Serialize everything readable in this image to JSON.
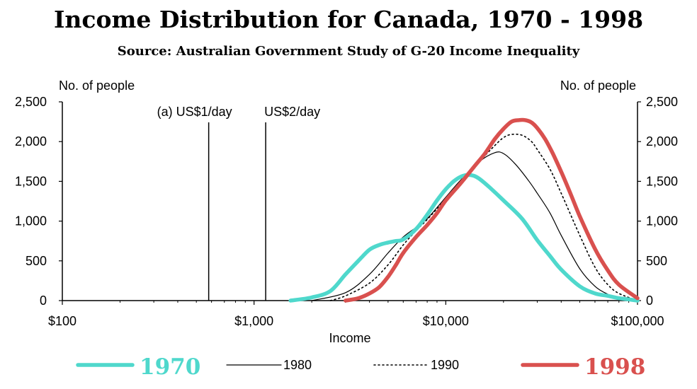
{
  "title": "Income Distribution for Canada, 1970 - 1998",
  "subtitle": "Source: Australian Government Study of G-20 Income Inequality",
  "colors": {
    "s1970": "#4fd8cc",
    "s1998": "#d9504e",
    "line": "#000000"
  },
  "chart_data": {
    "type": "line",
    "xlabel": "Income",
    "ylabel_left": "No. of people",
    "ylabel_right": "No. of people",
    "x_scale": "log",
    "xlim": [
      100,
      100000
    ],
    "ylim": [
      0,
      2500
    ],
    "x_ticks": [
      {
        "value": 100,
        "label": "$100"
      },
      {
        "value": 1000,
        "label": "$1,000"
      },
      {
        "value": 10000,
        "label": "$10,000"
      },
      {
        "value": 100000,
        "label": "$100,000"
      }
    ],
    "y_ticks": [
      {
        "value": 0,
        "label": "0"
      },
      {
        "value": 500,
        "label": "500"
      },
      {
        "value": 1000,
        "label": "1,000"
      },
      {
        "value": 1500,
        "label": "1,500"
      },
      {
        "value": 2000,
        "label": "2,000"
      },
      {
        "value": 2500,
        "label": "2,500"
      }
    ],
    "reference_lines": [
      {
        "x": 580,
        "label": "(a) US$1/day"
      },
      {
        "x": 1150,
        "label": "US$2/day"
      }
    ],
    "series": [
      {
        "name": "1970",
        "style": "thick-teal",
        "x": [
          1550,
          2000,
          2500,
          3000,
          3500,
          4000,
          4500,
          5000,
          5500,
          6000,
          7000,
          8000,
          9000,
          10000,
          11000,
          12000,
          13000,
          14000,
          15000,
          17000,
          20000,
          25000,
          30000,
          35000,
          40000,
          50000,
          60000,
          70000,
          80000,
          90000,
          100000
        ],
        "y": [
          0,
          40,
          120,
          330,
          500,
          640,
          700,
          730,
          750,
          770,
          900,
          1080,
          1260,
          1400,
          1500,
          1560,
          1580,
          1570,
          1530,
          1420,
          1260,
          1030,
          760,
          560,
          390,
          180,
          90,
          60,
          30,
          15,
          0
        ]
      },
      {
        "name": "1980",
        "style": "thin-solid",
        "x": [
          2000,
          3000,
          4000,
          5000,
          6000,
          7000,
          8000,
          10000,
          12000,
          15000,
          18000,
          20000,
          23000,
          27000,
          30000,
          35000,
          40000,
          50000,
          60000,
          70000,
          80000,
          100000
        ],
        "y": [
          0,
          100,
          330,
          600,
          800,
          920,
          1030,
          1300,
          1520,
          1750,
          1860,
          1850,
          1720,
          1510,
          1350,
          1100,
          820,
          400,
          180,
          80,
          30,
          0
        ]
      },
      {
        "name": "1990",
        "style": "dotted",
        "x": [
          2500,
          3000,
          4000,
          5000,
          6000,
          7000,
          8000,
          10000,
          12000,
          15000,
          18000,
          20000,
          22000,
          25000,
          28000,
          30000,
          35000,
          40000,
          50000,
          60000,
          70000,
          80000,
          100000
        ],
        "y": [
          0,
          60,
          220,
          450,
          700,
          880,
          1020,
          1280,
          1500,
          1750,
          1950,
          2050,
          2090,
          2080,
          2000,
          1900,
          1650,
          1350,
          820,
          420,
          200,
          90,
          0
        ]
      },
      {
        "name": "1998",
        "style": "thick-red",
        "x": [
          3000,
          3500,
          4000,
          4500,
          5000,
          5500,
          6000,
          7000,
          8000,
          9000,
          10000,
          12000,
          14000,
          16000,
          18000,
          20000,
          22000,
          24000,
          26000,
          28000,
          30000,
          33000,
          36000,
          40000,
          45000,
          50000,
          60000,
          70000,
          80000,
          100000
        ],
        "y": [
          0,
          30,
          90,
          170,
          300,
          450,
          600,
          800,
          950,
          1100,
          1260,
          1480,
          1680,
          1850,
          2030,
          2160,
          2250,
          2270,
          2270,
          2240,
          2170,
          2030,
          1860,
          1620,
          1330,
          1060,
          650,
          380,
          200,
          30
        ]
      }
    ]
  }
}
